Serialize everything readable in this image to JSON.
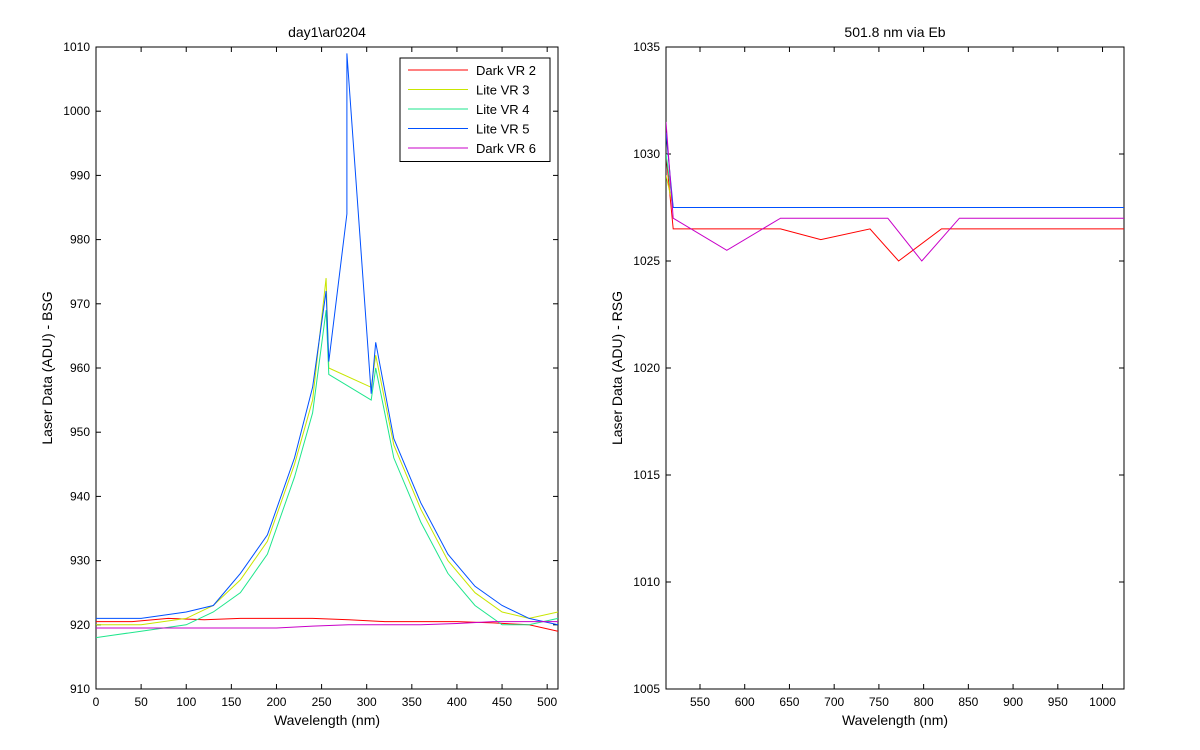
{
  "colors": {
    "series_palette": [
      "#ff0000",
      "#c8e600",
      "#1ee68c",
      "#0050ff",
      "#c800c8"
    ],
    "axis": "#000000",
    "background": "#ffffff"
  },
  "chart_data": [
    {
      "type": "line",
      "title": "day1\\ar0204",
      "xlabel": "Wavelength (nm)",
      "ylabel": "Laser Data (ADU) - BSG",
      "xlim": [
        0,
        512
      ],
      "ylim": [
        910,
        1010
      ],
      "xticks": [
        0,
        50,
        100,
        150,
        200,
        250,
        300,
        350,
        400,
        450,
        500
      ],
      "yticks": [
        910,
        920,
        930,
        940,
        950,
        960,
        970,
        980,
        990,
        1000,
        1010
      ],
      "grid": false,
      "legend_position": "top-right",
      "series": [
        {
          "name": "Dark VR 2",
          "color": "#ff0000",
          "x": [
            0,
            40,
            80,
            120,
            160,
            200,
            240,
            280,
            320,
            360,
            400,
            440,
            480,
            512
          ],
          "y": [
            920.5,
            920.5,
            921,
            920.8,
            921,
            921,
            921,
            920.8,
            920.5,
            920.5,
            920.5,
            920.3,
            920,
            919
          ]
        },
        {
          "name": "Lite VR 3",
          "color": "#c8e600",
          "x": [
            0,
            50,
            100,
            130,
            160,
            190,
            220,
            240,
            255,
            258,
            305,
            310,
            330,
            360,
            390,
            420,
            450,
            480,
            512
          ],
          "y": [
            920,
            920,
            921,
            923,
            927,
            933,
            945,
            955,
            974,
            960,
            957,
            962,
            948,
            938,
            930,
            925,
            922,
            921,
            922
          ]
        },
        {
          "name": "Lite VR 4",
          "color": "#1ee68c",
          "x": [
            0,
            50,
            100,
            130,
            160,
            190,
            220,
            240,
            255,
            258,
            305,
            310,
            330,
            360,
            390,
            420,
            450,
            480,
            512
          ],
          "y": [
            918,
            919,
            920,
            922,
            925,
            931,
            943,
            953,
            969,
            959,
            955,
            960,
            946,
            936,
            928,
            923,
            920,
            920,
            921
          ]
        },
        {
          "name": "Lite VR 5",
          "color": "#0050ff",
          "x": [
            0,
            50,
            100,
            130,
            160,
            190,
            220,
            240,
            255,
            258,
            278,
            278,
            305,
            310,
            330,
            360,
            390,
            420,
            450,
            480,
            512
          ],
          "y": [
            921,
            921,
            922,
            923,
            928,
            934,
            946,
            957,
            972,
            961,
            984,
            1009,
            956,
            964,
            949,
            939,
            931,
            926,
            923,
            921,
            920
          ]
        },
        {
          "name": "Dark VR 6",
          "color": "#c800c8",
          "x": [
            0,
            40,
            80,
            120,
            160,
            200,
            240,
            280,
            320,
            360,
            400,
            440,
            480,
            512
          ],
          "y": [
            919.5,
            919.5,
            919.5,
            919.5,
            919.5,
            919.5,
            919.8,
            920,
            920,
            920,
            920.2,
            920.5,
            920.5,
            920.5
          ]
        }
      ]
    },
    {
      "type": "line",
      "title": "501.8 nm via Eb",
      "xlabel": "Wavelength (nm)",
      "ylabel": "Laser Data (ADU) - RSG",
      "xlim": [
        512,
        1024
      ],
      "ylim": [
        1005,
        1035
      ],
      "xticks": [
        550,
        600,
        650,
        700,
        750,
        800,
        850,
        900,
        950,
        1000
      ],
      "yticks": [
        1005,
        1010,
        1015,
        1020,
        1025,
        1030,
        1035
      ],
      "grid": false,
      "series": [
        {
          "color": "#ff0000",
          "x": [
            512,
            520,
            580,
            640,
            685,
            740,
            772,
            820,
            880,
            940,
            1000,
            1024
          ],
          "y": [
            1030,
            1026.5,
            1026.5,
            1026.5,
            1026,
            1026.5,
            1025,
            1026.5,
            1026.5,
            1026.5,
            1026.5,
            1026.5
          ]
        },
        {
          "color": "#c8e600",
          "x": [
            512,
            520,
            580,
            640,
            700,
            760,
            820,
            880,
            940,
            1000,
            1024
          ],
          "y": [
            1029,
            1027.5,
            1027.5,
            1027.5,
            1027.5,
            1027.5,
            1027.5,
            1027.5,
            1027.5,
            1027.5,
            1027.5
          ]
        },
        {
          "color": "#1ee68c",
          "x": [
            512,
            520,
            580,
            640,
            700,
            760,
            820,
            880,
            940,
            1000,
            1024
          ],
          "y": [
            1030,
            1027.5,
            1027.5,
            1027.5,
            1027.5,
            1027.5,
            1027.5,
            1027.5,
            1027.5,
            1027.5,
            1027.5
          ]
        },
        {
          "color": "#0050ff",
          "x": [
            512,
            520,
            580,
            640,
            700,
            760,
            820,
            880,
            940,
            1000,
            1024
          ],
          "y": [
            1031,
            1027.5,
            1027.5,
            1027.5,
            1027.5,
            1027.5,
            1027.5,
            1027.5,
            1027.5,
            1027.5,
            1027.5
          ]
        },
        {
          "color": "#c800c8",
          "x": [
            512,
            520,
            580,
            640,
            700,
            760,
            798,
            840,
            900,
            960,
            1024
          ],
          "y": [
            1031.5,
            1027,
            1025.5,
            1027,
            1027,
            1027,
            1025,
            1027,
            1027,
            1027,
            1027
          ]
        }
      ]
    }
  ]
}
